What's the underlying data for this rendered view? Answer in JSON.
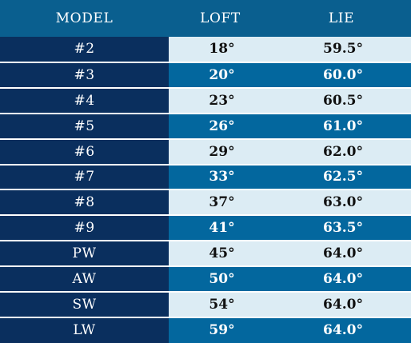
{
  "header": {
    "model": "MODEL",
    "loft": "LOFT",
    "lie": "LIE"
  },
  "rows": [
    {
      "model": "#2",
      "loft": "18°",
      "lie": "59.5°"
    },
    {
      "model": "#3",
      "loft": "20°",
      "lie": "60.0°"
    },
    {
      "model": "#4",
      "loft": "23°",
      "lie": "60.5°"
    },
    {
      "model": "#5",
      "loft": "26°",
      "lie": "61.0°"
    },
    {
      "model": "#6",
      "loft": "29°",
      "lie": "62.0°"
    },
    {
      "model": "#7",
      "loft": "33°",
      "lie": "62.5°"
    },
    {
      "model": "#8",
      "loft": "37°",
      "lie": "63.0°"
    },
    {
      "model": "#9",
      "loft": "41°",
      "lie": "63.5°"
    },
    {
      "model": "PW",
      "loft": "45°",
      "lie": "64.0°"
    },
    {
      "model": "AW",
      "loft": "50°",
      "lie": "64.0°"
    },
    {
      "model": "SW",
      "loft": "54°",
      "lie": "64.0°"
    },
    {
      "model": "LW",
      "loft": "59°",
      "lie": "64.0°"
    }
  ],
  "colors": {
    "header_bg": "#0a5f8f",
    "model_col_bg": "#0a2f5e",
    "light_row_bg": "#dcecf4",
    "dark_row_bg": "#03679e"
  }
}
